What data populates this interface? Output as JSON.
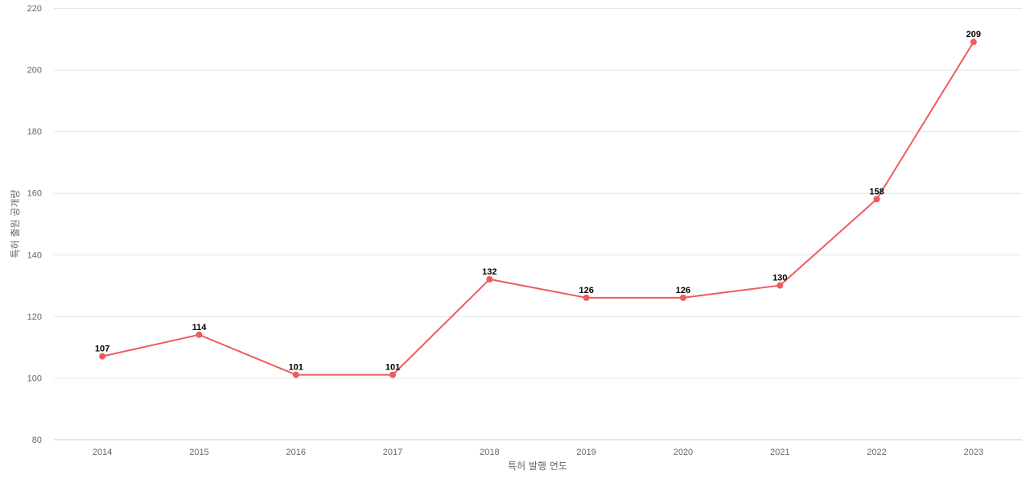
{
  "chart_data": {
    "type": "line",
    "title": "",
    "xlabel": "특허 발행 연도",
    "ylabel": "특허 출원 공개량",
    "categories": [
      "2014",
      "2015",
      "2016",
      "2017",
      "2018",
      "2019",
      "2020",
      "2021",
      "2022",
      "2023"
    ],
    "series": [
      {
        "values": [
          107,
          114,
          101,
          101,
          132,
          126,
          126,
          130,
          158,
          209
        ],
        "color": "#ef5b5b"
      }
    ],
    "ylim": [
      80,
      220
    ],
    "yticks": [
      "80",
      "100",
      "120",
      "140",
      "160",
      "180",
      "200",
      "220"
    ],
    "grid": true,
    "data_labels": true,
    "legend": "none"
  }
}
